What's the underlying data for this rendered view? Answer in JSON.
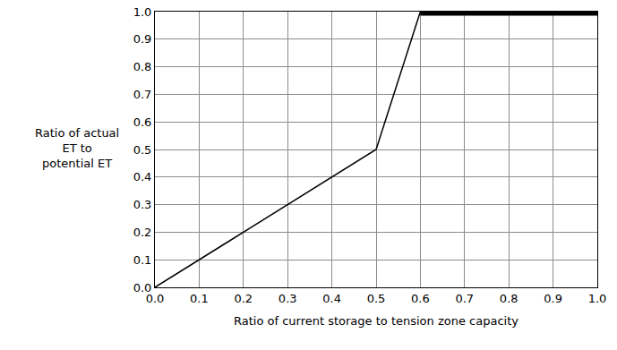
{
  "chart_data": {
    "type": "line",
    "x_label": "Ratio of current storage to tension zone capacity",
    "y_label": [
      "Ratio of actual",
      "ET to",
      "potential ET"
    ],
    "series": [
      {
        "x": [
          0,
          0.5,
          0.6
        ],
        "values": [
          0,
          0.5,
          1.0
        ],
        "color": "#000000",
        "line_style": "thin"
      },
      {
        "x": [
          0.6,
          1.0
        ],
        "values": [
          1.0,
          1.0
        ],
        "color": "#000000",
        "line_style": "thick"
      }
    ],
    "xlim": [
      0,
      1
    ],
    "ylim": [
      0,
      1
    ],
    "xticks": [
      {
        "value": 0,
        "label": "0.0"
      },
      0.1,
      0.2,
      0.3,
      0.4,
      0.5,
      0.6,
      0.7,
      0.8,
      0.9,
      {
        "value": 1,
        "label": "1.0"
      }
    ],
    "yticks": [
      {
        "value": 0,
        "label": "0.0"
      },
      0.1,
      0.2,
      0.3,
      0.4,
      0.5,
      0.6,
      0.7,
      0.8,
      0.9,
      {
        "value": 1,
        "label": "1.0"
      }
    ],
    "grid": true
  }
}
